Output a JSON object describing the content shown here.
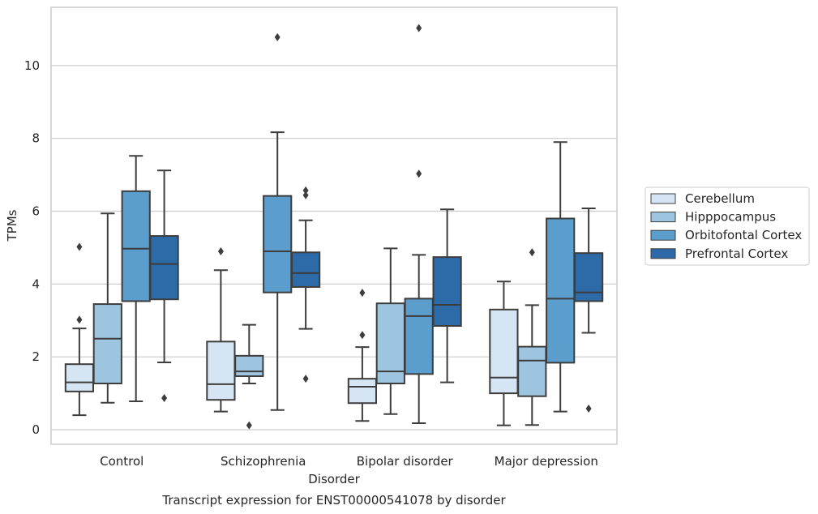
{
  "caption": "Transcript expression for ENST00000541078 by disorder",
  "chart_data": {
    "type": "boxplot",
    "xlabel": "Disorder",
    "ylabel": "TPMs",
    "ylim": [
      -0.4,
      11.6
    ],
    "yticks": [
      0,
      2,
      4,
      6,
      8,
      10
    ],
    "grid": "horizontal",
    "legend_position": "right",
    "categories": [
      "Control",
      "Schizophrenia",
      "Bipolar disorder",
      "Major depression"
    ],
    "series": [
      {
        "name": "Cerebellum",
        "color": "#d6e5f3",
        "boxes": [
          {
            "whisker_low": 0.4,
            "q1": 1.05,
            "median": 1.3,
            "q3": 1.8,
            "whisker_high": 2.78,
            "outliers": [
              3.02,
              5.02
            ]
          },
          {
            "whisker_low": 0.5,
            "q1": 0.82,
            "median": 1.25,
            "q3": 2.42,
            "whisker_high": 4.38,
            "outliers": [
              4.9
            ]
          },
          {
            "whisker_low": 0.24,
            "q1": 0.73,
            "median": 1.18,
            "q3": 1.4,
            "whisker_high": 2.27,
            "outliers": [
              2.6,
              3.76
            ]
          },
          {
            "whisker_low": 0.12,
            "q1": 1.0,
            "median": 1.43,
            "q3": 3.3,
            "whisker_high": 4.07,
            "outliers": []
          }
        ]
      },
      {
        "name": "Hipppocampus",
        "color": "#9ec5df",
        "boxes": [
          {
            "whisker_low": 0.74,
            "q1": 1.27,
            "median": 2.5,
            "q3": 3.45,
            "whisker_high": 5.94,
            "outliers": []
          },
          {
            "whisker_low": 1.27,
            "q1": 1.47,
            "median": 1.6,
            "q3": 2.03,
            "whisker_high": 2.88,
            "outliers": [
              0.12
            ]
          },
          {
            "whisker_low": 0.43,
            "q1": 1.27,
            "median": 1.6,
            "q3": 3.47,
            "whisker_high": 4.98,
            "outliers": []
          },
          {
            "whisker_low": 0.13,
            "q1": 0.92,
            "median": 1.9,
            "q3": 2.28,
            "whisker_high": 3.42,
            "outliers": [
              4.87
            ]
          }
        ]
      },
      {
        "name": "Orbitofontal Cortex",
        "color": "#5b9dcc",
        "boxes": [
          {
            "whisker_low": 0.78,
            "q1": 3.53,
            "median": 4.97,
            "q3": 6.55,
            "whisker_high": 7.52,
            "outliers": []
          },
          {
            "whisker_low": 0.54,
            "q1": 3.77,
            "median": 4.9,
            "q3": 6.42,
            "whisker_high": 8.17,
            "outliers": [
              10.78
            ]
          },
          {
            "whisker_low": 0.18,
            "q1": 1.53,
            "median": 3.12,
            "q3": 3.6,
            "whisker_high": 4.8,
            "outliers": [
              7.03,
              11.03
            ]
          },
          {
            "whisker_low": 0.5,
            "q1": 1.84,
            "median": 3.6,
            "q3": 5.8,
            "whisker_high": 7.9,
            "outliers": []
          }
        ]
      },
      {
        "name": "Prefrontal Cortex",
        "color": "#2c6aa8",
        "boxes": [
          {
            "whisker_low": 1.85,
            "q1": 3.58,
            "median": 4.55,
            "q3": 5.32,
            "whisker_high": 7.12,
            "outliers": [
              0.87
            ]
          },
          {
            "whisker_low": 2.77,
            "q1": 3.92,
            "median": 4.3,
            "q3": 4.87,
            "whisker_high": 5.75,
            "outliers": [
              1.4,
              6.44,
              6.57
            ]
          },
          {
            "whisker_low": 1.3,
            "q1": 2.85,
            "median": 3.43,
            "q3": 4.74,
            "whisker_high": 6.05,
            "outliers": []
          },
          {
            "whisker_low": 2.66,
            "q1": 3.53,
            "median": 3.77,
            "q3": 4.85,
            "whisker_high": 6.08,
            "outliers": [
              0.58
            ]
          }
        ]
      }
    ]
  }
}
